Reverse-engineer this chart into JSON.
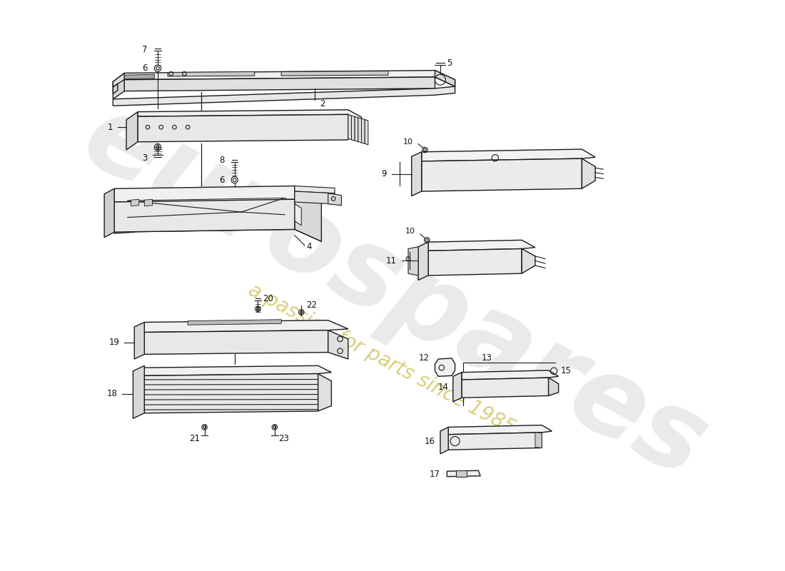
{
  "background_color": "#ffffff",
  "line_color": "#1a1a1a",
  "watermark_text1": "eurospares",
  "watermark_text2": "a passion for parts since 1985",
  "watermark_color1": "#cccccc",
  "watermark_color2": "#d4c96e"
}
